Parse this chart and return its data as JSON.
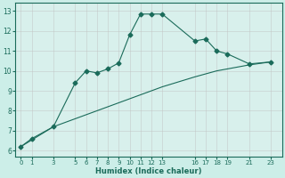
{
  "line1_x": [
    0,
    1,
    3,
    5,
    6,
    7,
    8,
    9,
    10,
    11,
    12,
    13,
    16,
    17,
    18,
    19,
    21,
    23
  ],
  "line1_y": [
    6.2,
    6.6,
    7.2,
    9.4,
    10.0,
    9.9,
    10.1,
    10.4,
    11.8,
    12.85,
    12.85,
    12.85,
    11.5,
    11.6,
    11.0,
    10.85,
    10.35,
    10.45
  ],
  "line2_x": [
    0,
    3,
    5,
    7,
    8,
    9,
    10,
    11,
    12,
    13,
    16,
    17,
    18,
    19,
    21,
    23
  ],
  "line2_y": [
    6.2,
    7.2,
    7.6,
    8.0,
    8.2,
    8.4,
    8.6,
    8.8,
    9.0,
    9.2,
    9.7,
    9.85,
    10.0,
    10.1,
    10.3,
    10.45
  ],
  "line_color": "#1a6b5a",
  "marker": "D",
  "markersize": 2.5,
  "xlabel": "Humidex (Indice chaleur)",
  "xticks": [
    0,
    1,
    3,
    5,
    6,
    7,
    8,
    9,
    10,
    11,
    12,
    13,
    16,
    17,
    18,
    19,
    21,
    23
  ],
  "yticks": [
    6,
    7,
    8,
    9,
    10,
    11,
    12,
    13
  ],
  "ylim": [
    5.7,
    13.4
  ],
  "xlim": [
    -0.5,
    24.0
  ],
  "bg_color": "#cceee8",
  "grid_color": "#c0c0c0",
  "grid_alpha": 0.6,
  "plot_bg": "#d8f0ec"
}
